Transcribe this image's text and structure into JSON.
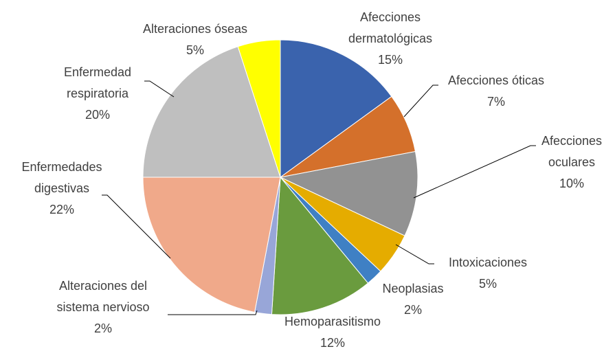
{
  "chart_data": {
    "type": "pie",
    "categories": [
      "Afecciones dermatológicas",
      "Afecciones óticas",
      "Afecciones oculares",
      "Intoxicaciones",
      "Neoplasias",
      "Hemoparasitismo",
      "Alteraciones del sistema nervioso",
      "Enfermedades digestivas",
      "Enfermedad respiratoria",
      "Alteraciones óseas"
    ],
    "values": [
      15,
      7,
      10,
      5,
      2,
      12,
      2,
      22,
      20,
      5
    ],
    "value_labels": [
      "15%",
      "7%",
      "10%",
      "5%",
      "2%",
      "12%",
      "2%",
      "22%",
      "20%",
      "5%"
    ],
    "colors": [
      "#3a63ad",
      "#d4702b",
      "#929292",
      "#e5ac00",
      "#3f80c4",
      "#6a9b3e",
      "#98a6d8",
      "#f0a98a",
      "#bfbfbf",
      "#ffff00"
    ]
  }
}
